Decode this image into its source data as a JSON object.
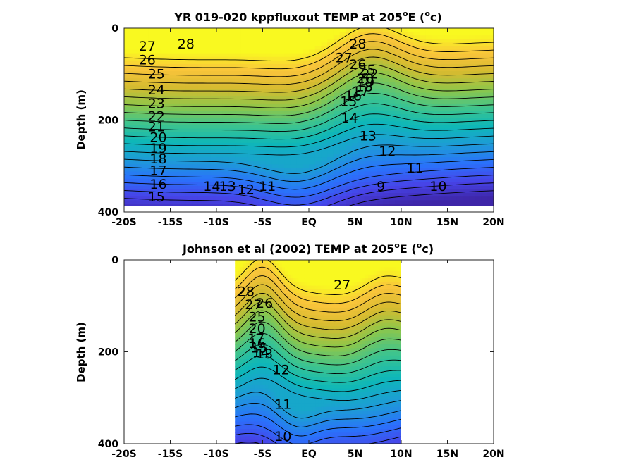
{
  "chart_data": [
    {
      "type": "heatmap",
      "title": "YR 019-020 kppfluxout TEMP at 205",
      "title_sup_degree": "o",
      "title_after": "E (",
      "title_unit_sup": "o",
      "title_unit": "c)",
      "ylabel": "Depth (m)",
      "xlabel": "",
      "xlim": [
        -20,
        20
      ],
      "ylim": [
        400,
        0
      ],
      "xticks": [
        -20,
        -15,
        -10,
        -5,
        0,
        5,
        10,
        15,
        20
      ],
      "xtick_labels": [
        "-20S",
        "-15S",
        "-10S",
        "-5S",
        "EQ",
        "5N",
        "10N",
        "15N",
        "20N"
      ],
      "yticks": [
        0,
        200,
        400
      ],
      "ytick_labels": [
        "0",
        "200",
        "400"
      ],
      "data_xlim": [
        -20,
        20
      ],
      "data_ylim": [
        0,
        390
      ],
      "colormap": [
        "#3e26a8",
        "#4744e8",
        "#2a72fb",
        "#1e9bd7",
        "#0eb7b8",
        "#3fc48d",
        "#8ec64a",
        "#d5bb30",
        "#f9c43b",
        "#f9f920"
      ],
      "clim": [
        8,
        29
      ],
      "contour_levels": [
        9,
        10,
        11,
        12,
        13,
        14,
        15,
        16,
        17,
        18,
        19,
        20,
        21,
        22,
        23,
        24,
        25,
        26,
        27,
        28
      ],
      "contour_labels": [
        {
          "text": "28",
          "x": -13.3,
          "y": 35
        },
        {
          "text": "27",
          "x": -17.5,
          "y": 40
        },
        {
          "text": "26",
          "x": -17.5,
          "y": 70
        },
        {
          "text": "25",
          "x": -16.5,
          "y": 100
        },
        {
          "text": "24",
          "x": -16.5,
          "y": 135
        },
        {
          "text": "23",
          "x": -16.5,
          "y": 165
        },
        {
          "text": "22",
          "x": -16.5,
          "y": 192
        },
        {
          "text": "21",
          "x": -16.5,
          "y": 215
        },
        {
          "text": "20",
          "x": -16.3,
          "y": 238
        },
        {
          "text": "19",
          "x": -16.3,
          "y": 262
        },
        {
          "text": "18",
          "x": -16.3,
          "y": 285
        },
        {
          "text": "17",
          "x": -16.3,
          "y": 310
        },
        {
          "text": "16",
          "x": -16.3,
          "y": 340
        },
        {
          "text": "15",
          "x": -16.5,
          "y": 368
        },
        {
          "text": "14",
          "x": -10.5,
          "y": 345
        },
        {
          "text": "13",
          "x": -8.8,
          "y": 345
        },
        {
          "text": "12",
          "x": -6.8,
          "y": 352
        },
        {
          "text": "11",
          "x": -4.5,
          "y": 345
        },
        {
          "text": "9",
          "x": 7.8,
          "y": 345
        },
        {
          "text": "10",
          "x": 14.0,
          "y": 345
        },
        {
          "text": "11",
          "x": 11.5,
          "y": 305
        },
        {
          "text": "12",
          "x": 8.5,
          "y": 268
        },
        {
          "text": "13",
          "x": 6.4,
          "y": 235
        },
        {
          "text": "14",
          "x": 4.4,
          "y": 196
        },
        {
          "text": "28",
          "x": 5.3,
          "y": 35
        },
        {
          "text": "27",
          "x": 3.8,
          "y": 65
        },
        {
          "text": "26",
          "x": 5.3,
          "y": 80
        },
        {
          "text": "25",
          "x": 6.3,
          "y": 92
        },
        {
          "text": "15",
          "x": 4.3,
          "y": 160
        },
        {
          "text": "16",
          "x": 4.8,
          "y": 148
        },
        {
          "text": "17",
          "x": 5.6,
          "y": 138
        },
        {
          "text": "18",
          "x": 6.0,
          "y": 128
        },
        {
          "text": "19",
          "x": 6.2,
          "y": 118
        },
        {
          "text": "20",
          "x": 6.1,
          "y": 110
        },
        {
          "text": "22",
          "x": 6.6,
          "y": 100
        }
      ]
    },
    {
      "type": "heatmap",
      "title": "Johnson et al (2002) TEMP at 205",
      "title_sup_degree": "o",
      "title_after": "E (",
      "title_unit_sup": "o",
      "title_unit": "c)",
      "ylabel": "Depth (m)",
      "xlabel": "",
      "xlim": [
        -20,
        20
      ],
      "ylim": [
        400,
        0
      ],
      "xticks": [
        -20,
        -15,
        -10,
        -5,
        0,
        5,
        10,
        15,
        20
      ],
      "xtick_labels": [
        "-20S",
        "-15S",
        "-10S",
        "-5S",
        "EQ",
        "5N",
        "10N",
        "15N",
        "20N"
      ],
      "yticks": [
        0,
        200,
        400
      ],
      "ytick_labels": [
        "0",
        "200",
        "400"
      ],
      "data_xlim": [
        -8,
        10
      ],
      "data_ylim": [
        0,
        400
      ],
      "colormap": [
        "#3e26a8",
        "#4744e8",
        "#2a72fb",
        "#1e9bd7",
        "#0eb7b8",
        "#3fc48d",
        "#8ec64a",
        "#d5bb30",
        "#f9c43b",
        "#f9f920"
      ],
      "clim": [
        8,
        29
      ],
      "contour_levels": [
        10,
        11,
        12,
        13,
        14,
        15,
        16,
        17,
        18,
        19,
        20,
        21,
        22,
        23,
        24,
        25,
        26,
        27,
        28
      ],
      "contour_labels": [
        {
          "text": "28",
          "x": -6.8,
          "y": 70
        },
        {
          "text": "27",
          "x": -6.0,
          "y": 98
        },
        {
          "text": "26",
          "x": -4.8,
          "y": 95
        },
        {
          "text": "27",
          "x": 3.6,
          "y": 55
        },
        {
          "text": "25",
          "x": -5.6,
          "y": 125
        },
        {
          "text": "20",
          "x": -5.6,
          "y": 150
        },
        {
          "text": "17",
          "x": -5.7,
          "y": 172
        },
        {
          "text": "16",
          "x": -5.6,
          "y": 182
        },
        {
          "text": "15",
          "x": -5.4,
          "y": 192
        },
        {
          "text": "14",
          "x": -5.2,
          "y": 202
        },
        {
          "text": "13",
          "x": -4.8,
          "y": 205
        },
        {
          "text": "12",
          "x": -3.0,
          "y": 240
        },
        {
          "text": "11",
          "x": -2.8,
          "y": 315
        },
        {
          "text": "10",
          "x": -2.8,
          "y": 385
        }
      ]
    }
  ]
}
